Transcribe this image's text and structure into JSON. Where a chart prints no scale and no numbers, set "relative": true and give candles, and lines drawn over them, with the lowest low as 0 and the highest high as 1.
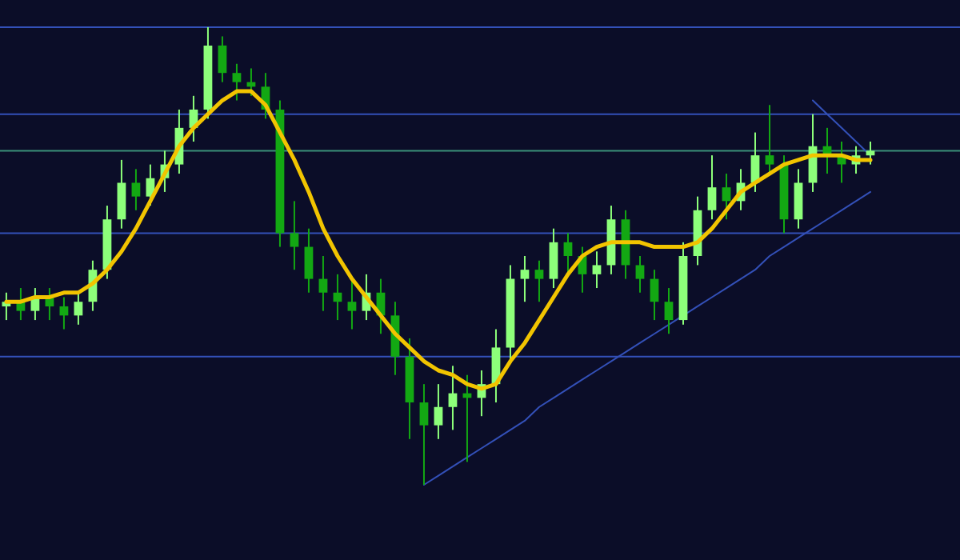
{
  "chart_data": {
    "type": "candlestick",
    "relative": true,
    "categories": [
      null,
      null,
      null,
      null,
      null,
      null,
      null,
      null,
      null,
      null,
      null,
      null,
      null,
      null,
      null,
      null,
      null,
      null,
      null,
      null,
      null,
      null,
      null,
      null,
      null,
      null,
      null,
      null,
      null,
      null,
      null,
      null,
      null,
      null,
      null,
      null,
      null,
      null,
      null,
      null,
      null,
      null,
      null,
      null,
      null,
      null,
      null,
      null,
      null,
      null,
      null,
      null,
      null,
      null,
      null,
      null,
      null,
      null,
      null,
      null,
      null
    ],
    "ohlc": [
      [
        0.39,
        0.42,
        0.36,
        0.4
      ],
      [
        0.4,
        0.43,
        0.36,
        0.38
      ],
      [
        0.38,
        0.43,
        0.36,
        0.41
      ],
      [
        0.41,
        0.43,
        0.36,
        0.39
      ],
      [
        0.39,
        0.41,
        0.34,
        0.37
      ],
      [
        0.37,
        0.42,
        0.35,
        0.4
      ],
      [
        0.4,
        0.49,
        0.38,
        0.47
      ],
      [
        0.47,
        0.61,
        0.45,
        0.58
      ],
      [
        0.58,
        0.71,
        0.56,
        0.66
      ],
      [
        0.66,
        0.69,
        0.6,
        0.63
      ],
      [
        0.63,
        0.7,
        0.61,
        0.67
      ],
      [
        0.67,
        0.73,
        0.64,
        0.7
      ],
      [
        0.7,
        0.82,
        0.68,
        0.78
      ],
      [
        0.78,
        0.85,
        0.75,
        0.82
      ],
      [
        0.82,
        1.0,
        0.8,
        0.96
      ],
      [
        0.96,
        0.98,
        0.88,
        0.9
      ],
      [
        0.9,
        0.92,
        0.84,
        0.88
      ],
      [
        0.88,
        0.91,
        0.85,
        0.87
      ],
      [
        0.87,
        0.9,
        0.8,
        0.82
      ],
      [
        0.82,
        0.84,
        0.52,
        0.55
      ],
      [
        0.55,
        0.62,
        0.47,
        0.52
      ],
      [
        0.52,
        0.56,
        0.42,
        0.45
      ],
      [
        0.45,
        0.5,
        0.38,
        0.42
      ],
      [
        0.42,
        0.46,
        0.36,
        0.4
      ],
      [
        0.4,
        0.45,
        0.34,
        0.38
      ],
      [
        0.38,
        0.46,
        0.36,
        0.42
      ],
      [
        0.42,
        0.45,
        0.33,
        0.37
      ],
      [
        0.37,
        0.4,
        0.24,
        0.28
      ],
      [
        0.28,
        0.32,
        0.1,
        0.18
      ],
      [
        0.18,
        0.22,
        0,
        0.13
      ],
      [
        0.13,
        0.22,
        0.1,
        0.17
      ],
      [
        0.17,
        0.26,
        0.12,
        0.2
      ],
      [
        0.2,
        0.24,
        0.05,
        0.19
      ],
      [
        0.19,
        0.25,
        0.15,
        0.22
      ],
      [
        0.22,
        0.34,
        0.18,
        0.3
      ],
      [
        0.3,
        0.48,
        0.27,
        0.45
      ],
      [
        0.45,
        0.5,
        0.4,
        0.47
      ],
      [
        0.47,
        0.49,
        0.4,
        0.45
      ],
      [
        0.45,
        0.56,
        0.43,
        0.53
      ],
      [
        0.53,
        0.55,
        0.46,
        0.5
      ],
      [
        0.5,
        0.52,
        0.42,
        0.46
      ],
      [
        0.46,
        0.51,
        0.43,
        0.48
      ],
      [
        0.48,
        0.61,
        0.46,
        0.58
      ],
      [
        0.58,
        0.6,
        0.45,
        0.48
      ],
      [
        0.48,
        0.5,
        0.42,
        0.45
      ],
      [
        0.45,
        0.47,
        0.36,
        0.4
      ],
      [
        0.4,
        0.43,
        0.33,
        0.36
      ],
      [
        0.36,
        0.53,
        0.35,
        0.5
      ],
      [
        0.5,
        0.63,
        0.48,
        0.6
      ],
      [
        0.6,
        0.72,
        0.58,
        0.65
      ],
      [
        0.65,
        0.68,
        0.58,
        0.62
      ],
      [
        0.62,
        0.69,
        0.6,
        0.66
      ],
      [
        0.66,
        0.77,
        0.64,
        0.72
      ],
      [
        0.72,
        0.83,
        0.68,
        0.7
      ],
      [
        0.7,
        0.72,
        0.55,
        0.58
      ],
      [
        0.58,
        0.69,
        0.56,
        0.66
      ],
      [
        0.66,
        0.81,
        0.64,
        0.74
      ],
      [
        0.74,
        0.78,
        0.68,
        0.72
      ],
      [
        0.72,
        0.75,
        0.66,
        0.7
      ],
      [
        0.7,
        0.74,
        0.68,
        0.72
      ],
      [
        0.72,
        0.75,
        0.7,
        0.73
      ]
    ],
    "colors": [
      "#8dff7a",
      "#13a813",
      "#8dff7a",
      "#13a813",
      "#13a813",
      "#8dff7a",
      "#8dff7a",
      "#8dff7a",
      "#8dff7a",
      "#13a813",
      "#8dff7a",
      "#8dff7a",
      "#8dff7a",
      "#8dff7a",
      "#8dff7a",
      "#13a813",
      "#13a813",
      "#13a813",
      "#13a813",
      "#13a813",
      "#13a813",
      "#13a813",
      "#13a813",
      "#13a813",
      "#13a813",
      "#8dff7a",
      "#13a813",
      "#13a813",
      "#13a813",
      "#13a813",
      "#8dff7a",
      "#8dff7a",
      "#13a813",
      "#8dff7a",
      "#8dff7a",
      "#8dff7a",
      "#8dff7a",
      "#13a813",
      "#8dff7a",
      "#13a813",
      "#13a813",
      "#8dff7a",
      "#8dff7a",
      "#13a813",
      "#13a813",
      "#13a813",
      "#13a813",
      "#8dff7a",
      "#8dff7a",
      "#8dff7a",
      "#13a813",
      "#8dff7a",
      "#8dff7a",
      "#13a813",
      "#13a813",
      "#8dff7a",
      "#8dff7a",
      "#13a813",
      "#13a813",
      "#8dff7a",
      "#8dff7a"
    ],
    "series": [
      {
        "type": "line",
        "color": "#f2c400",
        "values": [
          0.4,
          0.4,
          0.41,
          0.41,
          0.42,
          0.42,
          0.44,
          0.47,
          0.51,
          0.56,
          0.62,
          0.68,
          0.74,
          0.78,
          0.81,
          0.84,
          0.86,
          0.86,
          0.83,
          0.77,
          0.71,
          0.64,
          0.56,
          0.5,
          0.45,
          0.41,
          0.37,
          0.33,
          0.3,
          0.27,
          0.25,
          0.24,
          0.22,
          0.21,
          0.22,
          0.27,
          0.31,
          0.36,
          0.41,
          0.46,
          0.5,
          0.52,
          0.53,
          0.53,
          0.53,
          0.52,
          0.52,
          0.52,
          0.53,
          0.56,
          0.6,
          0.64,
          0.66,
          0.68,
          0.7,
          0.71,
          0.72,
          0.72,
          0.72,
          0.71,
          0.71
        ]
      },
      {
        "type": "line",
        "color": "#3350b8",
        "values": [
          null,
          null,
          null,
          null,
          null,
          null,
          null,
          null,
          null,
          null,
          null,
          null,
          null,
          null,
          null,
          null,
          null,
          null,
          null,
          null,
          null,
          null,
          null,
          null,
          null,
          null,
          null,
          null,
          null,
          0,
          0.02,
          0.04,
          0.06,
          0.08,
          0.1,
          0.12,
          0.14,
          0.17,
          0.19,
          0.21,
          0.23,
          0.25,
          0.27,
          0.29,
          0.31,
          0.33,
          0.35,
          0.37,
          0.39,
          0.41,
          0.43,
          0.45,
          0.47,
          0.5,
          0.52,
          0.54,
          0.56,
          0.58,
          0.6,
          0.62,
          0.64
        ]
      },
      {
        "type": "line",
        "color": "#3350b8",
        "values": [
          null,
          null,
          null,
          null,
          null,
          null,
          null,
          null,
          null,
          null,
          null,
          null,
          null,
          null,
          null,
          null,
          null,
          null,
          null,
          null,
          null,
          null,
          null,
          null,
          null,
          null,
          null,
          null,
          null,
          null,
          null,
          null,
          null,
          null,
          null,
          null,
          null,
          null,
          null,
          null,
          null,
          null,
          null,
          null,
          null,
          null,
          null,
          null,
          null,
          null,
          null,
          null,
          null,
          null,
          null,
          null,
          0.84,
          0.81,
          0.78,
          0.75,
          0.72
        ]
      }
    ],
    "ref_lines": [
      {
        "axis": "y",
        "value": 1.0,
        "color": "#3350b8"
      },
      {
        "axis": "y",
        "value": 0.81,
        "color": "#3350b8"
      },
      {
        "axis": "y",
        "value": 0.73,
        "color": "#3a8f78"
      },
      {
        "axis": "y",
        "value": 0.55,
        "color": "#3350b8"
      },
      {
        "axis": "y",
        "value": 0.28,
        "color": "#3350b8"
      }
    ]
  }
}
